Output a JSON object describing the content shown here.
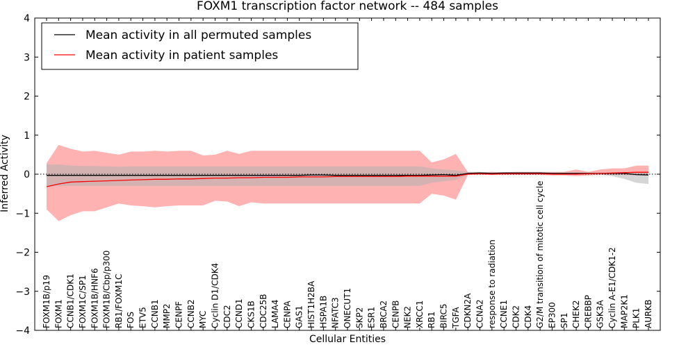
{
  "chart_data": {
    "type": "line",
    "title": "FOXM1 transcription factor network -- 484 samples",
    "xlabel": "Cellular Entities",
    "ylabel": "Inferred Activity",
    "ylim": [
      -4,
      4
    ],
    "yticks": [
      -4,
      -3,
      -2,
      -1,
      0,
      1,
      2,
      3,
      4
    ],
    "ytick_labels": [
      "−4",
      "−3",
      "−2",
      "−1",
      "0",
      "1",
      "2",
      "3",
      "4"
    ],
    "legend_position": "top-left",
    "categories": [
      "FOXM1B/p19",
      "FOXM1",
      "CCNB1/CDK1",
      "FOXM1C/SP1",
      "FOXM1B/HNF6",
      "FOXM1B/Cbp/p300",
      "RB1/FOXM1C",
      "FOS",
      "ETV5",
      "CCNB1",
      "MMP2",
      "CENPF",
      "CCNB2",
      "MYC",
      "Cyclin D1/CDK4",
      "CDC2",
      "CCND1",
      "CKS1B",
      "CDC25B",
      "LAMA4",
      "CENPA",
      "GAS1",
      "HIST1H2BA",
      "HSPA1B",
      "NFATC3",
      "ONECUT1",
      "SKP2",
      "ESR1",
      "BRCA2",
      "CENPB",
      "NEK2",
      "XRCC1",
      "RB1",
      "BIRC5",
      "TGFA",
      "CDKN2A",
      "CCNA2",
      "response to radiation",
      "CCNE1",
      "CDK2",
      "CDK4",
      "G2/M transition of mitotic cell cycle",
      "EP300",
      "SP1",
      "CHEK2",
      "CREBBP",
      "GSK3A",
      "Cyclin A-E1/CDK1-2",
      "MAP2K1",
      "PLK1",
      "AURKB"
    ],
    "series": [
      {
        "name": "Mean activity in all permuted samples",
        "color": "#000000",
        "values": [
          -0.03,
          -0.03,
          -0.03,
          -0.03,
          -0.03,
          -0.03,
          -0.03,
          -0.03,
          -0.03,
          -0.03,
          -0.03,
          -0.03,
          -0.03,
          -0.03,
          -0.03,
          -0.03,
          -0.03,
          -0.03,
          -0.03,
          -0.03,
          -0.03,
          -0.03,
          -0.02,
          -0.02,
          -0.03,
          -0.03,
          -0.03,
          -0.03,
          -0.03,
          -0.03,
          -0.03,
          -0.03,
          -0.02,
          -0.01,
          -0.03,
          0.02,
          0.03,
          0.02,
          0.03,
          0.03,
          0.03,
          0.03,
          0.02,
          0.02,
          0.02,
          0.02,
          0.02,
          0.02,
          0.02,
          -0.01,
          -0.02
        ],
        "band_upper": [
          0.25,
          0.25,
          0.22,
          0.21,
          0.21,
          0.2,
          0.19,
          0.2,
          0.2,
          0.2,
          0.2,
          0.2,
          0.2,
          0.2,
          0.2,
          0.2,
          0.2,
          0.2,
          0.2,
          0.2,
          0.2,
          0.2,
          0.2,
          0.2,
          0.2,
          0.2,
          0.2,
          0.2,
          0.2,
          0.2,
          0.2,
          0.2,
          0.15,
          0.12,
          0.1,
          0.06,
          0.06,
          0.05,
          0.05,
          0.05,
          0.05,
          0.05,
          0.05,
          0.05,
          0.05,
          0.05,
          0.05,
          0.05,
          0.05,
          0.05,
          0.05
        ],
        "band_lower": [
          -0.3,
          -0.3,
          -0.3,
          -0.3,
          -0.3,
          -0.3,
          -0.3,
          -0.3,
          -0.3,
          -0.3,
          -0.3,
          -0.3,
          -0.3,
          -0.3,
          -0.3,
          -0.3,
          -0.3,
          -0.3,
          -0.3,
          -0.3,
          -0.3,
          -0.3,
          -0.3,
          -0.3,
          -0.3,
          -0.3,
          -0.3,
          -0.3,
          -0.3,
          -0.3,
          -0.3,
          -0.3,
          -0.22,
          -0.18,
          -0.15,
          -0.02,
          -0.01,
          -0.01,
          -0.01,
          -0.01,
          -0.01,
          -0.01,
          -0.01,
          -0.01,
          -0.01,
          -0.01,
          -0.01,
          -0.05,
          -0.12,
          -0.22,
          -0.25
        ]
      },
      {
        "name": "Mean activity in patient samples",
        "color": "#ff0000",
        "values": [
          -0.32,
          -0.25,
          -0.2,
          -0.19,
          -0.18,
          -0.17,
          -0.16,
          -0.15,
          -0.14,
          -0.13,
          -0.13,
          -0.12,
          -0.12,
          -0.11,
          -0.1,
          -0.1,
          -0.09,
          -0.09,
          -0.08,
          -0.08,
          -0.08,
          -0.07,
          -0.07,
          -0.07,
          -0.06,
          -0.06,
          -0.06,
          -0.06,
          -0.06,
          -0.06,
          -0.05,
          -0.05,
          -0.05,
          -0.05,
          -0.05,
          0.0,
          0.01,
          0.0,
          0.01,
          0.01,
          0.01,
          0.01,
          0.0,
          0.0,
          0.0,
          0.01,
          0.02,
          0.03,
          0.04,
          0.05,
          0.05
        ],
        "band_upper": [
          0.28,
          0.75,
          0.65,
          0.58,
          0.6,
          0.55,
          0.5,
          0.58,
          0.58,
          0.6,
          0.58,
          0.6,
          0.6,
          0.48,
          0.5,
          0.6,
          0.52,
          0.6,
          0.6,
          0.6,
          0.6,
          0.6,
          0.6,
          0.6,
          0.6,
          0.6,
          0.6,
          0.6,
          0.6,
          0.6,
          0.6,
          0.6,
          0.3,
          0.38,
          0.52,
          0.05,
          0.05,
          0.06,
          0.05,
          0.06,
          0.06,
          0.06,
          0.06,
          0.06,
          0.12,
          0.06,
          0.12,
          0.15,
          0.15,
          0.22,
          0.22
        ],
        "band_lower": [
          -0.9,
          -1.2,
          -1.05,
          -0.95,
          -0.95,
          -0.85,
          -0.75,
          -0.8,
          -0.82,
          -0.85,
          -0.82,
          -0.8,
          -0.8,
          -0.8,
          -0.68,
          -0.7,
          -0.82,
          -0.72,
          -0.75,
          -0.75,
          -0.75,
          -0.75,
          -0.75,
          -0.75,
          -0.75,
          -0.75,
          -0.75,
          -0.75,
          -0.75,
          -0.75,
          -0.75,
          -0.75,
          -0.5,
          -0.55,
          -0.65,
          -0.02,
          -0.01,
          -0.02,
          -0.02,
          -0.02,
          -0.02,
          -0.02,
          -0.03,
          -0.03,
          -0.05,
          -0.03,
          -0.02,
          -0.02,
          -0.02,
          -0.03,
          -0.03
        ]
      }
    ]
  }
}
